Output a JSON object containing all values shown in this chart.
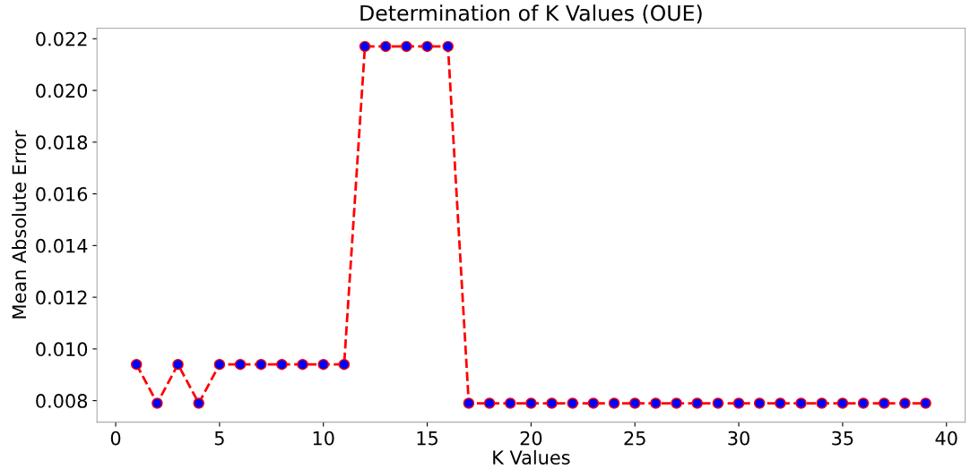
{
  "chart_data": {
    "type": "line",
    "title": "Determination of K Values (OUE)",
    "xlabel": "K Values",
    "ylabel": "Mean Absolute Error",
    "x": [
      1,
      2,
      3,
      4,
      5,
      6,
      7,
      8,
      9,
      10,
      11,
      12,
      13,
      14,
      15,
      16,
      17,
      18,
      19,
      20,
      21,
      22,
      23,
      24,
      25,
      26,
      27,
      28,
      29,
      30,
      31,
      32,
      33,
      34,
      35,
      36,
      37,
      38,
      39
    ],
    "series": [
      {
        "color": "#ff0000",
        "colors": [
          "#0000ff",
          "#0000ff",
          "#0000ff",
          "#0000ff",
          "#0000ff",
          "#0000ff",
          "#0000ff",
          "#0000ff",
          "#0000ff",
          "#0000ff",
          "#0000ff",
          "#0000ff",
          "#0000ff",
          "#0000ff",
          "#0000ff",
          "#0000ff",
          "#0000ff",
          "#0000ff",
          "#0000ff",
          "#0000ff",
          "#0000ff",
          "#0000ff",
          "#0000ff",
          "#0000ff",
          "#0000ff",
          "#0000ff",
          "#0000ff",
          "#0000ff",
          "#0000ff",
          "#0000ff",
          "#0000ff",
          "#0000ff",
          "#0000ff",
          "#0000ff",
          "#0000ff",
          "#0000ff",
          "#0000ff",
          "#0000ff",
          "#0000ff"
        ],
        "values": [
          0.0094,
          0.0079,
          0.0094,
          0.0079,
          0.0094,
          0.0094,
          0.0094,
          0.0094,
          0.0094,
          0.0094,
          0.0094,
          0.0217,
          0.0217,
          0.0217,
          0.0217,
          0.0217,
          0.0079,
          0.0079,
          0.0079,
          0.0079,
          0.0079,
          0.0079,
          0.0079,
          0.0079,
          0.0079,
          0.0079,
          0.0079,
          0.0079,
          0.0079,
          0.0079,
          0.0079,
          0.0079,
          0.0079,
          0.0079,
          0.0079,
          0.0079,
          0.0079,
          0.0079,
          0.0079
        ]
      }
    ],
    "xlim": [
      -0.9,
      40.9
    ],
    "xticks": [
      0,
      5,
      10,
      15,
      20,
      25,
      30,
      35,
      40
    ],
    "ylim": [
      0.00717,
      0.02241
    ],
    "yticks": [
      {
        "value": 0.008,
        "label": "0.008"
      },
      {
        "value": 0.01,
        "label": "0.010"
      },
      {
        "value": 0.012,
        "label": "0.012"
      },
      {
        "value": 0.014,
        "label": "0.014"
      },
      {
        "value": 0.016,
        "label": "0.016"
      },
      {
        "value": 0.018,
        "label": "0.018"
      },
      {
        "value": 0.02,
        "label": "0.020"
      },
      {
        "value": 0.022,
        "label": "0.022"
      }
    ],
    "marker": "circle",
    "line_style": "dashed",
    "grid": false
  }
}
